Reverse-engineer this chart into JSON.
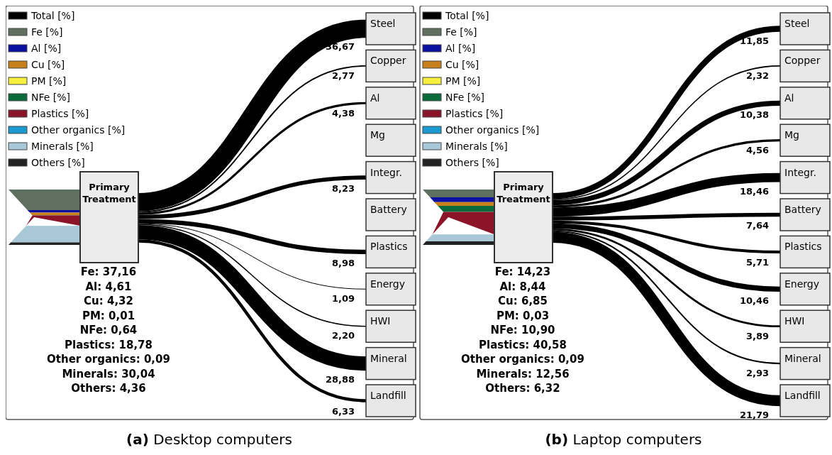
{
  "chart_data": [
    {
      "type": "other",
      "title": "(a) Desktop computers",
      "legend": "top left",
      "categories": [
        "Steel",
        "Copper",
        "Al",
        "Mg",
        "Integr.",
        "Battery",
        "Plastics",
        "Energy",
        "HWI",
        "Mineral",
        "Landfill"
      ],
      "series": [
        {
          "name": "Total [%]",
          "color": "#000000",
          "values": [
            36.67,
            2.77,
            4.38,
            null,
            8.23,
            null,
            8.98,
            1.09,
            2.2,
            28.88,
            6.33
          ],
          "value_labels": [
            "36,67",
            "2,77",
            "4,38",
            null,
            "8,23",
            null,
            "8,98",
            "1,09",
            "2,20",
            "28,88",
            "6,33"
          ]
        }
      ]
    },
    {
      "type": "other",
      "legend": "top left",
      "categories": [
        "Primary Treatment"
      ],
      "series": [
        {
          "name": "Fe [%]",
          "color": "#5f6f60",
          "values": [
            37.16
          ],
          "value_labels": [
            "Fe: 37,16"
          ]
        },
        {
          "name": "Al [%]",
          "color": "#0a10a0",
          "values": [
            4.61
          ],
          "value_labels": [
            "Al: 4,61"
          ]
        },
        {
          "name": "Cu [%]",
          "color": "#c8801a",
          "values": [
            4.32
          ],
          "value_labels": [
            "Cu: 4,32"
          ]
        },
        {
          "name": "PM [%]",
          "color": "#f8f040",
          "values": [
            0.01
          ],
          "value_labels": [
            "PM: 0,01"
          ]
        },
        {
          "name": "NFe [%]",
          "color": "#0a6a3a",
          "values": [
            0.64
          ],
          "value_labels": [
            "NFe: 0,64"
          ]
        },
        {
          "name": "Plastics [%]",
          "color": "#8c1428",
          "values": [
            18.78
          ],
          "value_labels": [
            "Plastics: 18,78"
          ]
        },
        {
          "name": "Other organics [%]",
          "color": "#1a9ad0",
          "values": [
            0.09
          ],
          "value_labels": [
            "Other organics: 0,09"
          ]
        },
        {
          "name": "Minerals [%]",
          "color": "#a8c8d8",
          "values": [
            30.04
          ],
          "value_labels": [
            "Minerals: 30,04"
          ]
        },
        {
          "name": "Others [%]",
          "color": "#222222",
          "values": [
            4.36
          ],
          "value_labels": [
            "Others: 4,36"
          ]
        }
      ]
    },
    {
      "type": "other",
      "title": "(b) Laptop computers",
      "legend": "top left",
      "categories": [
        "Steel",
        "Copper",
        "Al",
        "Mg",
        "Integr.",
        "Battery",
        "Plastics",
        "Energy",
        "HWI",
        "Mineral",
        "Landfill"
      ],
      "series": [
        {
          "name": "Total [%]",
          "color": "#000000",
          "values": [
            11.85,
            2.32,
            10.38,
            4.56,
            18.46,
            7.64,
            5.71,
            10.46,
            3.89,
            2.93,
            21.79
          ],
          "value_labels": [
            "11,85",
            "2,32",
            "10,38",
            "4,56",
            "18,46",
            "7,64",
            "5,71",
            "10,46",
            "3,89",
            "2,93",
            "21,79"
          ]
        }
      ]
    },
    {
      "type": "other",
      "legend": "top left",
      "categories": [
        "Primary Treatment"
      ],
      "series": [
        {
          "name": "Fe [%]",
          "color": "#5f6f60",
          "values": [
            14.23
          ],
          "value_labels": [
            "Fe: 14,23"
          ]
        },
        {
          "name": "Al [%]",
          "color": "#0a10a0",
          "values": [
            8.44
          ],
          "value_labels": [
            "Al: 8,44"
          ]
        },
        {
          "name": "Cu [%]",
          "color": "#c8801a",
          "values": [
            6.85
          ],
          "value_labels": [
            "Cu: 6,85"
          ]
        },
        {
          "name": "PM [%]",
          "color": "#f8f040",
          "values": [
            0.03
          ],
          "value_labels": [
            "PM: 0,03"
          ]
        },
        {
          "name": "NFe [%]",
          "color": "#0a6a3a",
          "values": [
            10.9
          ],
          "value_labels": [
            "NFe: 10,90"
          ]
        },
        {
          "name": "Plastics [%]",
          "color": "#8c1428",
          "values": [
            40.58
          ],
          "value_labels": [
            "Plastics: 40,58"
          ]
        },
        {
          "name": "Other organics [%]",
          "color": "#1a9ad0",
          "values": [
            0.09
          ],
          "value_labels": [
            "Other organics: 0,09"
          ]
        },
        {
          "name": "Minerals [%]",
          "color": "#a8c8d8",
          "values": [
            12.56
          ],
          "value_labels": [
            "Minerals: 12,56"
          ]
        },
        {
          "name": "Others [%]",
          "color": "#222222",
          "values": [
            6.32
          ],
          "value_labels": [
            "Others: 6,32"
          ]
        }
      ]
    }
  ]
}
